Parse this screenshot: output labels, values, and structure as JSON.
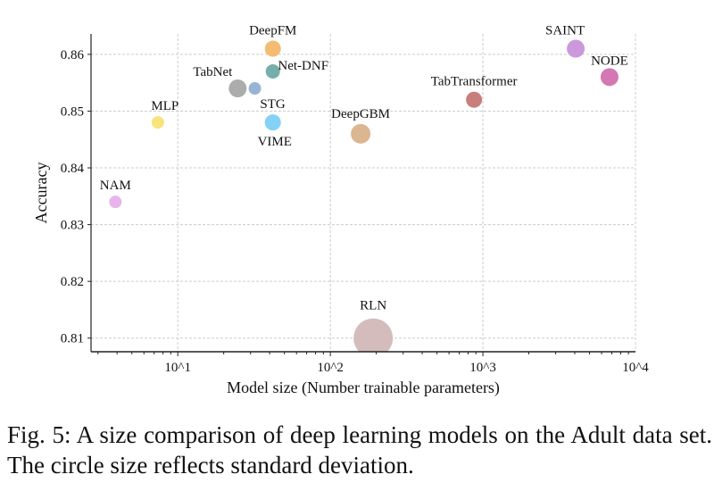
{
  "chart_data": {
    "type": "scatter",
    "title": "",
    "xlabel": "Model size (Number trainable parameters)",
    "ylabel": "Accuracy",
    "xscale": "log",
    "xlim": [
      2.7,
      10000
    ],
    "ylim": [
      0.8076,
      0.8636
    ],
    "grid": true,
    "xticks": [
      {
        "value": 10,
        "label": "10^1"
      },
      {
        "value": 100,
        "label": "10^2"
      },
      {
        "value": 1000,
        "label": "10^3"
      },
      {
        "value": 10000,
        "label": "10^4"
      }
    ],
    "yticks": [
      0.81,
      0.82,
      0.83,
      0.84,
      0.85,
      0.86
    ],
    "marker_size_meaning": "standard deviation",
    "points": [
      {
        "label": "NAM",
        "x": 3.9,
        "y": 0.834,
        "size": 7,
        "color": "#e8b4ec"
      },
      {
        "label": "MLP",
        "x": 7.4,
        "y": 0.848,
        "size": 7,
        "color": "#f7e47a"
      },
      {
        "label": "TabNet",
        "x": 24.7,
        "y": 0.854,
        "size": 10,
        "color": "#acacac"
      },
      {
        "label": "STG",
        "x": 32,
        "y": 0.854,
        "size": 7,
        "color": "#98b4d4"
      },
      {
        "label": "DeepFM",
        "x": 42,
        "y": 0.861,
        "size": 9,
        "color": "#f3bc72"
      },
      {
        "label": "Net-DNF",
        "x": 42,
        "y": 0.857,
        "size": 8,
        "color": "#76aeaa"
      },
      {
        "label": "VIME",
        "x": 42,
        "y": 0.848,
        "size": 9,
        "color": "#84d2f6"
      },
      {
        "label": "DeepGBM",
        "x": 158,
        "y": 0.846,
        "size": 11,
        "color": "#dcb690"
      },
      {
        "label": "RLN",
        "x": 191,
        "y": 0.81,
        "size": 22,
        "color": "#d4bcbc"
      },
      {
        "label": "TabTransformer",
        "x": 875,
        "y": 0.852,
        "size": 9,
        "color": "#c87e7c"
      },
      {
        "label": "SAINT",
        "x": 4060,
        "y": 0.861,
        "size": 10,
        "color": "#cc98dc"
      },
      {
        "label": "NODE",
        "x": 6760,
        "y": 0.856,
        "size": 10,
        "color": "#d478b4"
      }
    ]
  },
  "caption": "Fig. 5: A size comparison of deep learning models on the Adult data set. The circle size reflects standard deviation."
}
